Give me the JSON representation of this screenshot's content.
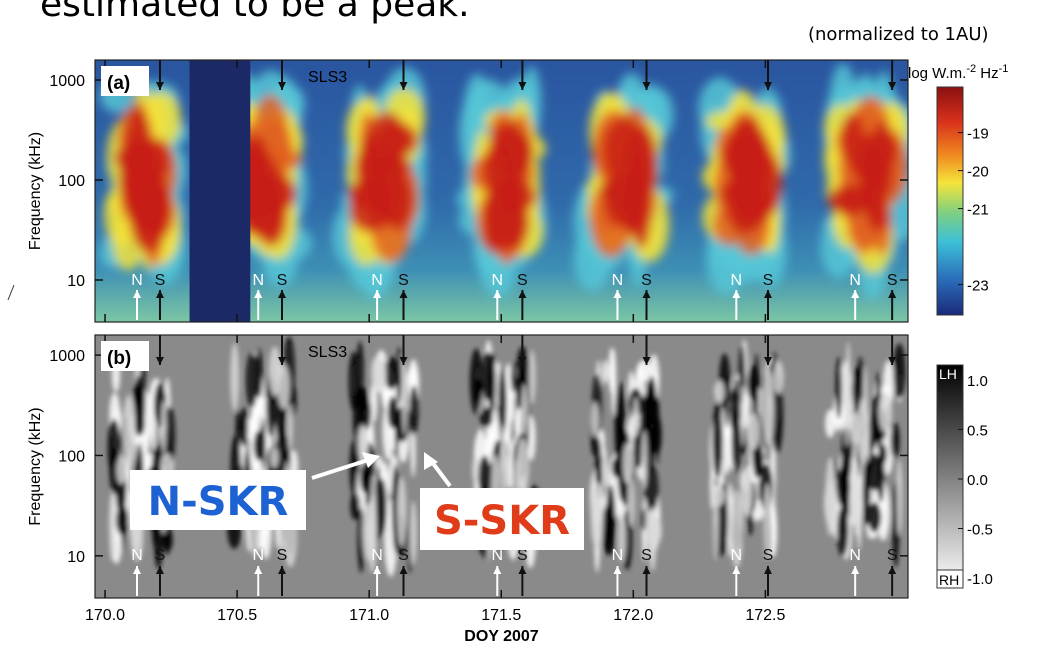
{
  "header_text": "estimated to be a peak.",
  "note": "(normalized to 1AU)",
  "callouts": {
    "north": "N-SKR",
    "south": "S-SKR"
  },
  "chart_data": [
    {
      "type": "heatmap",
      "panel_label": "(a)",
      "label": "SLS3",
      "ylabel": "Frequency (kHz)",
      "xlim": [
        169.962,
        173.04
      ],
      "ylim": [
        3.8,
        1585
      ],
      "log_y": true,
      "xticks": [
        170,
        170.5,
        171,
        171.5,
        172,
        172.5
      ],
      "yticks": [
        10,
        100,
        1000
      ],
      "data_gap": [
        170.32,
        170.55
      ],
      "north_label": "N",
      "south_label": "S",
      "north_x": [
        170.121,
        170.58,
        171.03,
        171.485,
        171.94,
        172.39,
        172.84
      ],
      "south_x": [
        170.208,
        170.67,
        171.13,
        171.58,
        172.05,
        172.51,
        172.98
      ],
      "colorbar": {
        "title_parts": [
          "log W.m.",
          "-2",
          " Hz",
          "-1"
        ],
        "clim": [
          -23.8,
          -17.8
        ],
        "ticks": [
          -19,
          -20,
          -21,
          -23
        ]
      }
    },
    {
      "type": "heatmap",
      "panel_label": "(b)",
      "label": "SLS3",
      "ylabel": "Frequency (kHz)",
      "xlabel": "DOY 2007",
      "xlim": [
        169.962,
        173.04
      ],
      "ylim": [
        3.8,
        1585
      ],
      "log_y": true,
      "xticks": [
        {
          "value": 170,
          "label": "170.0"
        },
        170.5,
        {
          "value": 171,
          "label": "171.0"
        },
        171.5,
        {
          "value": 172,
          "label": "172.0"
        },
        172.5
      ],
      "yticks": [
        10,
        100,
        1000
      ],
      "north_label": "N",
      "south_label": "S",
      "north_x": [
        170.121,
        170.58,
        171.03,
        171.485,
        171.94,
        172.39,
        172.84
      ],
      "south_x": [
        170.208,
        170.67,
        171.13,
        171.58,
        172.05,
        172.51,
        172.98
      ],
      "colorbar": {
        "top_label": "LH",
        "bottom_label": "RH",
        "clim": [
          -1.1,
          1.15
        ],
        "ticks": [
          {
            "value": 1,
            "label": "1.0"
          },
          0.5,
          {
            "value": 0,
            "label": "0.0"
          },
          -0.5,
          {
            "value": -1,
            "label": "-1.0"
          }
        ]
      }
    }
  ]
}
